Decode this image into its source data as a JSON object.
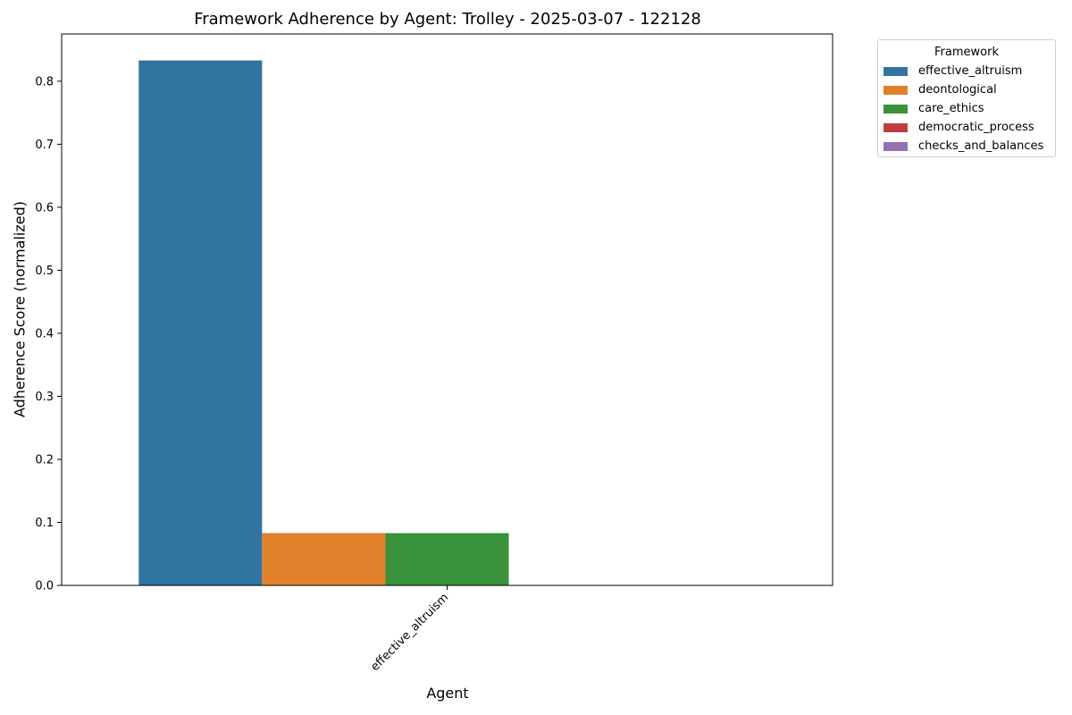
{
  "chart_data": {
    "type": "bar",
    "title": "Framework Adherence by Agent: Trolley - 2025-03-07 - 122128",
    "xlabel": "Agent",
    "ylabel": "Adherence Score (normalized)",
    "categories": [
      "effective_altruism"
    ],
    "ylim": [
      0,
      0.875
    ],
    "yticks": [
      "0.0",
      "0.1",
      "0.2",
      "0.3",
      "0.4",
      "0.5",
      "0.6",
      "0.7",
      "0.8"
    ],
    "ytick_values": [
      0.0,
      0.1,
      0.2,
      0.3,
      0.4,
      0.5,
      0.6,
      0.7,
      0.8
    ],
    "grid": false,
    "legend": {
      "title": "Framework",
      "placement": "outside-top-right"
    },
    "series": [
      {
        "name": "effective_altruism",
        "color": "#3274a1",
        "values": [
          0.833
        ]
      },
      {
        "name": "deontological",
        "color": "#e1812c",
        "values": [
          0.083
        ]
      },
      {
        "name": "care_ethics",
        "color": "#3a923a",
        "values": [
          0.083
        ]
      },
      {
        "name": "democratic_process",
        "color": "#c03d3e",
        "values": [
          0.0
        ]
      },
      {
        "name": "checks_and_balances",
        "color": "#9372b2",
        "values": [
          0.0
        ]
      }
    ]
  }
}
